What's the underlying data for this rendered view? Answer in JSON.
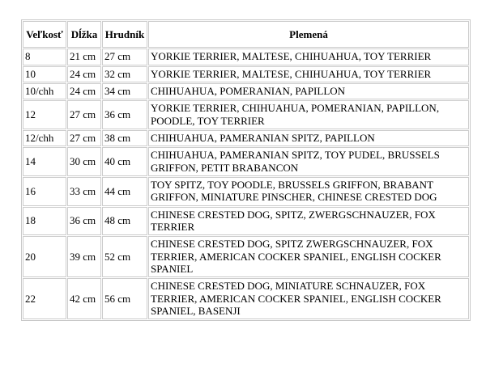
{
  "colors": {
    "background": "#ffffff",
    "border": "#cccccc",
    "text": "#000000"
  },
  "table": {
    "columns": [
      {
        "key": "size",
        "label": "Veľkosť"
      },
      {
        "key": "length",
        "label": "Dĺžka"
      },
      {
        "key": "chest",
        "label": "Hrudník"
      },
      {
        "key": "breeds",
        "label": "Plemená"
      }
    ],
    "rows": [
      {
        "size": "8",
        "length": "21 cm",
        "chest": "27 cm",
        "breeds": "YORKIE TERRIER, MALTESE, CHIHUAHUA, TOY TERRIER"
      },
      {
        "size": "10",
        "length": "24 cm",
        "chest": "32 cm",
        "breeds": "YORKIE TERRIER, MALTESE, CHIHUAHUA, TOY TERRIER"
      },
      {
        "size": "10/chh",
        "length": "24 cm",
        "chest": "34 cm",
        "breeds": "CHIHUAHUA, POMERANIAN, PAPILLON"
      },
      {
        "size": "12",
        "length": "27 cm",
        "chest": "36 cm",
        "breeds": "YORKIE TERRIER, CHIHUAHUA, POMERANIAN, PAPILLON, POODLE, TOY TERRIER"
      },
      {
        "size": "12/chh",
        "length": "27 cm",
        "chest": "38 cm",
        "breeds": "CHIHUAHUA, PAMERANIAN SPITZ, PAPILLON"
      },
      {
        "size": "14",
        "length": "30 cm",
        "chest": "40 cm",
        "breeds": "CHIHUAHUA, PAMERANIAN SPITZ, TOY PUDEL, BRUSSELS GRIFFON, PETIT BRABANCON"
      },
      {
        "size": "16",
        "length": "33 cm",
        "chest": "44 cm",
        "breeds": "TOY SPITZ, TOY POODLE, BRUSSELS GRIFFON, BRABANT GRIFFON, MINIATURE PINSCHER, CHINESE CRESTED DOG"
      },
      {
        "size": "18",
        "length": "36 cm",
        "chest": "48 cm",
        "breeds": "CHINESE CRESTED DOG, SPITZ, ZWERGSCHNAUZER, FOX TERRIER"
      },
      {
        "size": "20",
        "length": "39 cm",
        "chest": "52 cm",
        "breeds": "CHINESE CRESTED DOG, SPITZ ZWERGSCHNAUZER, FOX TERRIER, AMERICAN COCKER SPANIEL, ENGLISH COCKER SPANIEL"
      },
      {
        "size": "22",
        "length": "42 cm",
        "chest": "56 cm",
        "breeds": "CHINESE CRESTED DOG, MINIATURE SCHNAUZER, FOX TERRIER, AMERICAN COCKER SPANIEL, ENGLISH COCKER SPANIEL, BASENJI"
      }
    ]
  }
}
